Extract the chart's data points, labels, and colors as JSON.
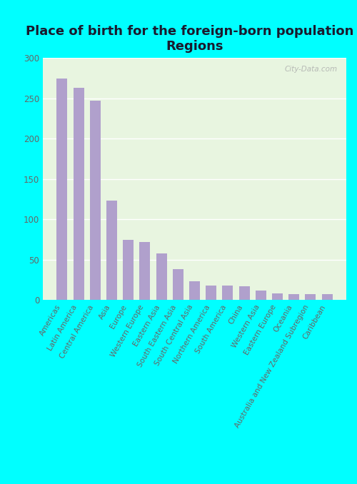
{
  "title": "Place of birth for the foreign-born population -\nRegions",
  "categories": [
    "Americas",
    "Latin America",
    "Central America",
    "Asia",
    "Europe",
    "Western Europe",
    "Eastern Asia",
    "South Eastern Asia",
    "South Central Asia",
    "Northern America",
    "South America",
    "China",
    "Western Asia",
    "Eastern Europe",
    "Oceania",
    "Australia and New Zealand Subregion",
    "Caribbean"
  ],
  "values": [
    275,
    263,
    247,
    123,
    75,
    72,
    58,
    38,
    23,
    18,
    18,
    17,
    12,
    8,
    7,
    7,
    7
  ],
  "bar_color": "#b0a0cc",
  "background_color": "#00ffff",
  "plot_bg_color": "#e8f5e0",
  "title_color": "#1a1a2e",
  "tick_label_color": "#666666",
  "ytick_values": [
    0,
    50,
    100,
    150,
    200,
    250,
    300
  ],
  "ylim": [
    0,
    300
  ],
  "title_fontsize": 13,
  "tick_fontsize": 8.5,
  "xlabel_fontsize": 7.5,
  "watermark": "City-Data.com"
}
